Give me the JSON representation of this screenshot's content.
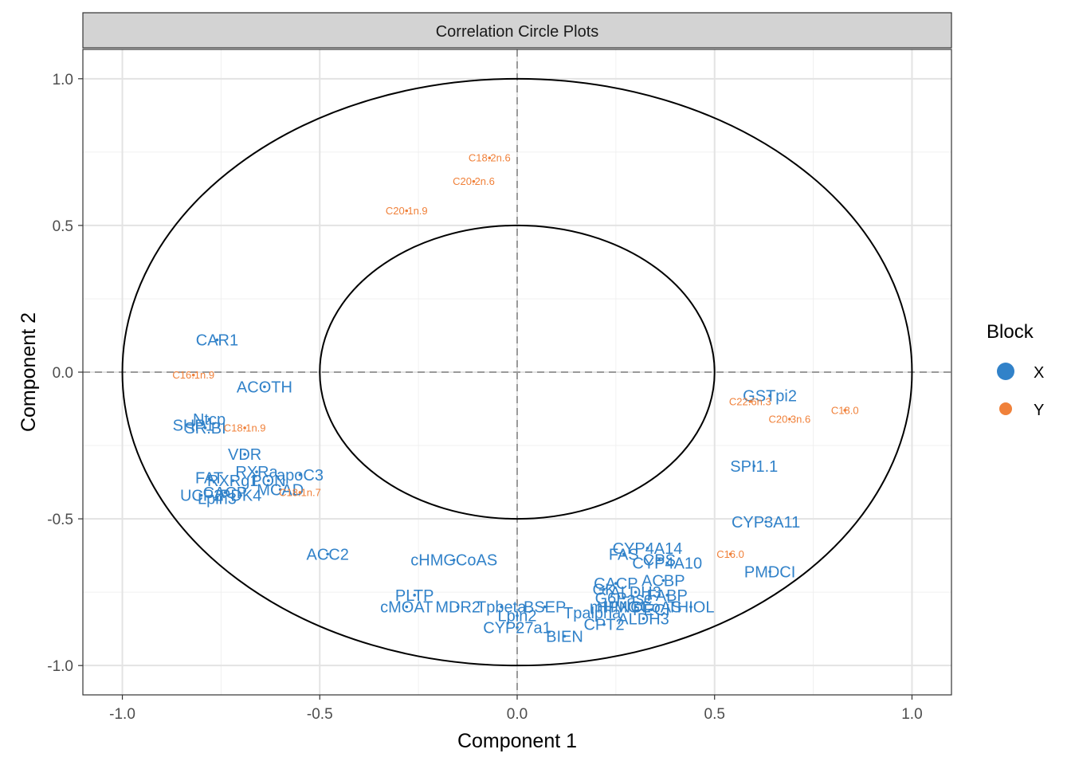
{
  "chart_data": {
    "type": "scatter",
    "strip_title": "Correlation Circle Plots",
    "xlabel": "Component  1",
    "ylabel": "Component  2",
    "xlim": [
      -1.1,
      1.1
    ],
    "ylim": [
      -1.1,
      1.1
    ],
    "x_ticks": [
      -1.0,
      -0.5,
      0.0,
      0.5,
      1.0
    ],
    "x_tick_labels": [
      "-1.0",
      "-0.5",
      "0.0",
      "0.5",
      "1.0"
    ],
    "y_ticks": [
      1.0,
      0.5,
      0.0,
      -0.5,
      -1.0
    ],
    "y_tick_labels": [
      "1.0",
      "0.5",
      "0.0",
      "-0.5",
      "-1.0"
    ],
    "grid": true,
    "circles": [
      0.5,
      1.0
    ],
    "reference_lines": {
      "x": 0,
      "y": 0
    },
    "legend": {
      "title": "Block",
      "position": "right",
      "entries": [
        {
          "label": "X",
          "color": "#3182c9"
        },
        {
          "label": "Y",
          "color": "#f0813a"
        }
      ]
    },
    "series": [
      {
        "name": "X",
        "color": "#3182c9",
        "points": [
          {
            "label": "CAR1",
            "x": -0.76,
            "y": 0.11
          },
          {
            "label": "ACOTH",
            "x": -0.64,
            "y": -0.05
          },
          {
            "label": "Ntcp",
            "x": -0.78,
            "y": -0.16
          },
          {
            "label": "SHP1",
            "x": -0.82,
            "y": -0.18
          },
          {
            "label": "SR.BI",
            "x": -0.79,
            "y": -0.19
          },
          {
            "label": "VDR",
            "x": -0.69,
            "y": -0.28
          },
          {
            "label": "RXRa",
            "x": -0.66,
            "y": -0.34
          },
          {
            "label": "apoC3",
            "x": -0.55,
            "y": -0.35
          },
          {
            "label": "FAT",
            "x": -0.78,
            "y": -0.36
          },
          {
            "label": "RXRg1",
            "x": -0.72,
            "y": -0.37
          },
          {
            "label": "PON",
            "x": -0.63,
            "y": -0.37
          },
          {
            "label": "MCAD",
            "x": -0.6,
            "y": -0.4
          },
          {
            "label": "CACP",
            "x": -0.74,
            "y": -0.41
          },
          {
            "label": "PDK4",
            "x": -0.7,
            "y": -0.42
          },
          {
            "label": "UCP2",
            "x": -0.8,
            "y": -0.42
          },
          {
            "label": "Lpin3",
            "x": -0.76,
            "y": -0.43
          },
          {
            "label": "SPI1.1",
            "x": 0.6,
            "y": -0.32
          },
          {
            "label": "GSTpi2",
            "x": 0.64,
            "y": -0.08
          },
          {
            "label": "CYP3A11",
            "x": 0.63,
            "y": -0.51
          },
          {
            "label": "ACC2",
            "x": -0.48,
            "y": -0.62
          },
          {
            "label": "cHMGCoAS",
            "x": -0.16,
            "y": -0.64
          },
          {
            "label": "CYP4A14",
            "x": 0.33,
            "y": -0.6
          },
          {
            "label": "FAS",
            "x": 0.27,
            "y": -0.62
          },
          {
            "label": "CPS",
            "x": 0.36,
            "y": -0.64
          },
          {
            "label": "CYP4A10",
            "x": 0.38,
            "y": -0.65
          },
          {
            "label": "PMDCI",
            "x": 0.64,
            "y": -0.68
          },
          {
            "label": "ACBP",
            "x": 0.37,
            "y": -0.71
          },
          {
            "label": "CACP",
            "x": 0.25,
            "y": -0.72
          },
          {
            "label": "GK",
            "x": 0.22,
            "y": -0.74
          },
          {
            "label": "ALDH3",
            "x": 0.3,
            "y": -0.75
          },
          {
            "label": "FABP",
            "x": 0.38,
            "y": -0.76
          },
          {
            "label": "G6Pase",
            "x": 0.27,
            "y": -0.77
          },
          {
            "label": "PLTP",
            "x": -0.26,
            "y": -0.76
          },
          {
            "label": "cMOAT",
            "x": -0.28,
            "y": -0.8
          },
          {
            "label": "MDR2",
            "x": -0.15,
            "y": -0.8
          },
          {
            "label": "Tpbeta",
            "x": -0.04,
            "y": -0.8
          },
          {
            "label": "BSEP",
            "x": 0.07,
            "y": -0.8
          },
          {
            "label": "Lpin2",
            "x": 0.0,
            "y": -0.83
          },
          {
            "label": "CYP27a1",
            "x": 0.0,
            "y": -0.87
          },
          {
            "label": "Tpalpha",
            "x": 0.19,
            "y": -0.82
          },
          {
            "label": "HPNCL",
            "x": 0.27,
            "y": -0.8
          },
          {
            "label": "mHMGCoAS",
            "x": 0.3,
            "y": -0.8
          },
          {
            "label": "PECI",
            "x": 0.34,
            "y": -0.81
          },
          {
            "label": "THIOL",
            "x": 0.44,
            "y": -0.8
          },
          {
            "label": "ALDH3",
            "x": 0.32,
            "y": -0.84
          },
          {
            "label": "CPT2",
            "x": 0.22,
            "y": -0.86
          },
          {
            "label": "BIEN",
            "x": 0.12,
            "y": -0.9
          }
        ]
      },
      {
        "name": "Y",
        "color": "#f0813a",
        "points": [
          {
            "label": "C18.2n.6",
            "x": -0.07,
            "y": 0.73
          },
          {
            "label": "C20.2n.6",
            "x": -0.11,
            "y": 0.65
          },
          {
            "label": "C20.1n.9",
            "x": -0.28,
            "y": 0.55
          },
          {
            "label": "C16.1n.9",
            "x": -0.82,
            "y": -0.01
          },
          {
            "label": "C18.1n.9",
            "x": -0.69,
            "y": -0.19
          },
          {
            "label": "C18.1n.7",
            "x": -0.55,
            "y": -0.41
          },
          {
            "label": "C22.6n.3",
            "x": 0.59,
            "y": -0.1
          },
          {
            "label": "C20.3n.6",
            "x": 0.69,
            "y": -0.16
          },
          {
            "label": "C18.0",
            "x": 0.83,
            "y": -0.13
          },
          {
            "label": "C16.0",
            "x": 0.54,
            "y": -0.62
          }
        ]
      }
    ]
  }
}
